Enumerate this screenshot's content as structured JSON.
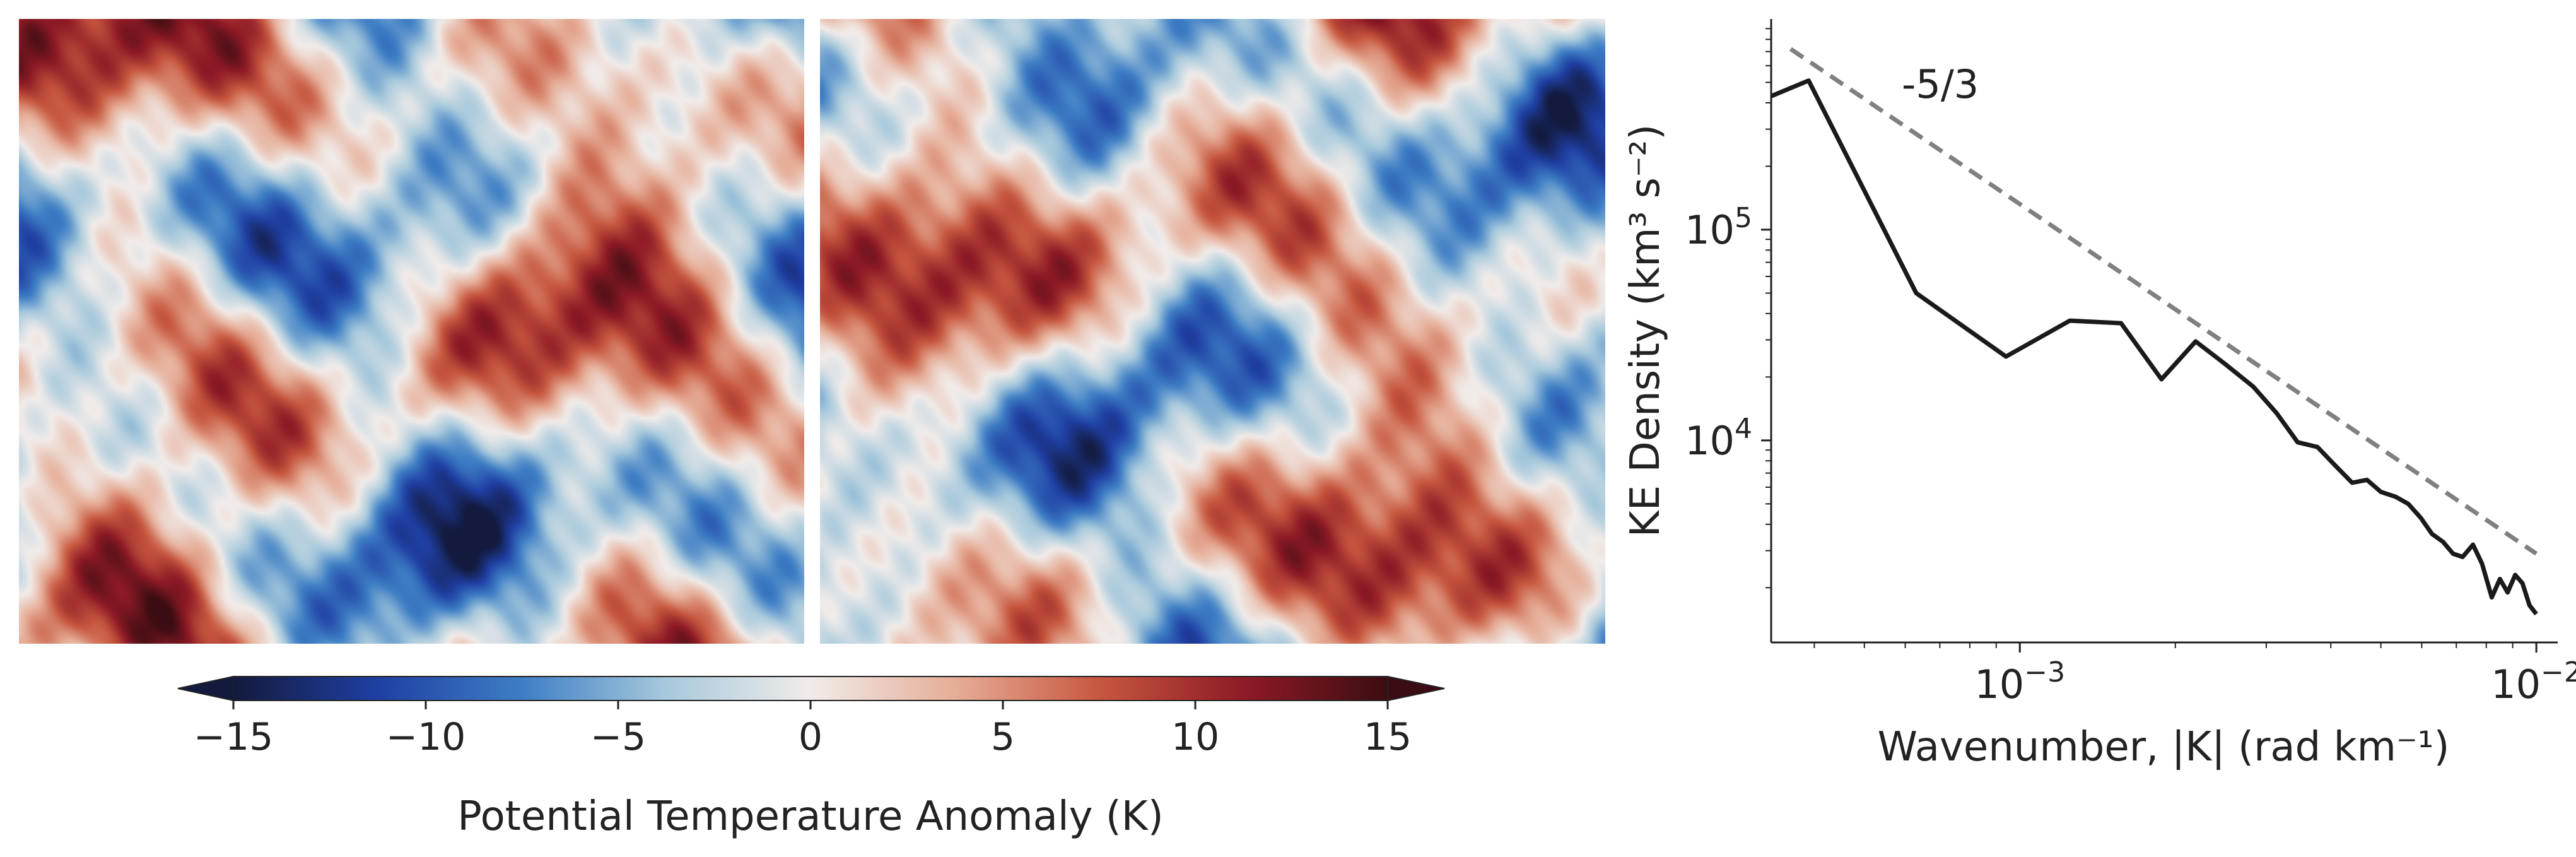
{
  "colorbar": {
    "label": "Potential Temperature Anomaly (K)",
    "ticks": [
      -15,
      -10,
      -5,
      0,
      5,
      10,
      15
    ],
    "tick_labels": [
      "−15",
      "−10",
      "−5",
      "0",
      "5",
      "10",
      "15"
    ],
    "range": [
      -15,
      15
    ],
    "extend": "both",
    "colormap": "balance (dark blue → white → dark red)",
    "colors": [
      "#131a3d",
      "#1f3fa3",
      "#3e7ec5",
      "#a7c9dc",
      "#f1ecea",
      "#e6ad97",
      "#c7573f",
      "#8f1a26",
      "#3b0d12"
    ]
  },
  "maps": [
    {
      "name": "potential-temperature-anomaly-map-1"
    },
    {
      "name": "potential-temperature-anomaly-map-2"
    }
  ],
  "chart_data": {
    "type": "line",
    "xlabel": "Wavenumber, |K| (rad km⁻¹)",
    "ylabel": "KE Density (km³ s⁻²)",
    "xscale": "log",
    "yscale": "log",
    "xlim": [
      0.00033,
      0.011
    ],
    "ylim": [
      1100,
      1000000
    ],
    "x_tick_values": [
      0.001,
      0.01
    ],
    "x_tick_labels": {
      "base": "10",
      "exponents": [
        "−3",
        "−2"
      ]
    },
    "y_tick_values": [
      10000,
      100000
    ],
    "y_tick_labels": {
      "base": "10",
      "exponents": [
        "4",
        "5"
      ]
    },
    "grid": false,
    "series": [
      {
        "color": "#1a1a1a",
        "style": "solid",
        "x": [
          0.00033,
          0.00039,
          0.00063,
          0.00094,
          0.00125,
          0.00157,
          0.00188,
          0.00219,
          0.0025,
          0.00283,
          0.00314,
          0.00345,
          0.00377,
          0.00408,
          0.0044,
          0.0047,
          0.005,
          0.00534,
          0.00565,
          0.00597,
          0.00628,
          0.0066,
          0.0069,
          0.0072,
          0.00754,
          0.00785,
          0.0082,
          0.0085,
          0.0088,
          0.0091,
          0.0094,
          0.0097,
          0.01
        ],
        "y": [
          430000,
          510000,
          50000,
          25000,
          37000,
          36000,
          19500,
          29500,
          23000,
          18000,
          13500,
          9800,
          9300,
          7600,
          6300,
          6500,
          5700,
          5400,
          5000,
          4300,
          3600,
          3300,
          2900,
          2800,
          3200,
          2600,
          1800,
          2200,
          1900,
          2300,
          2100,
          1650,
          1500
        ]
      },
      {
        "name": "-5/3",
        "color": "#808080",
        "style": "dashed",
        "x": [
          0.00036,
          0.01
        ],
        "y": [
          720000,
          2900
        ]
      }
    ],
    "annotations": [
      {
        "text": "-5/3"
      }
    ]
  }
}
